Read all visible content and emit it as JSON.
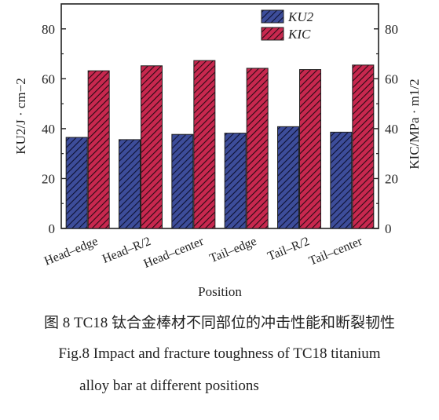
{
  "chart_data": {
    "type": "bar",
    "categories": [
      "Head–edge",
      "Head–R/2",
      "Head–center",
      "Tail–edge",
      "Tail–R/2",
      "Tail–center"
    ],
    "series": [
      {
        "name": "KU2",
        "values": [
          36.5,
          35.6,
          37.7,
          38.2,
          40.8,
          38.6
        ],
        "color": "#3d4d9a"
      },
      {
        "name": "KIC",
        "values": [
          63.2,
          65.2,
          67.3,
          64.2,
          63.7,
          65.5
        ],
        "color": "#c8284f"
      }
    ],
    "xlabel": "Position",
    "ylabel_left": "KU2/J · cm−2",
    "ylabel_right": "KIC/MPa · m1/2",
    "ylim": [
      0,
      90
    ],
    "yticks": [
      0,
      20,
      40,
      60,
      80
    ],
    "grid": false,
    "legend": "top-right, inside"
  },
  "caption": {
    "cn": "图 8   TC18 钛合金棒材不同部位的冲击性能和断裂韧性",
    "en_line1": "Fig.8    Impact and fracture toughness of TC18 titanium",
    "en_line2": "alloy bar at different positions"
  }
}
